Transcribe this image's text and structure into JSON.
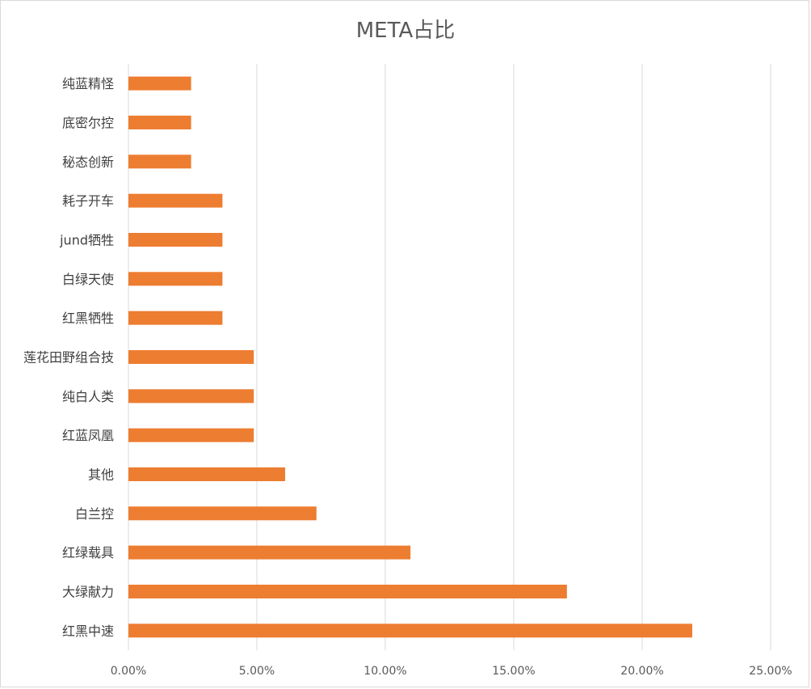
{
  "chart_data": {
    "type": "bar",
    "orientation": "horizontal",
    "title": "META占比",
    "categories": [
      "红黑中速",
      "大绿献力",
      "红绿载具",
      "白兰控",
      "其他",
      "红蓝凤凰",
      "纯白人类",
      "莲花田野组合技",
      "红黑牺牲",
      "白绿天使",
      "jund牺牲",
      "耗子开车",
      "秘态创新",
      "底密尔控",
      "纯蓝精怪"
    ],
    "values": [
      21.95,
      17.07,
      10.98,
      7.32,
      6.1,
      4.88,
      4.88,
      4.88,
      3.66,
      3.66,
      3.66,
      3.66,
      2.44,
      2.44,
      2.44
    ],
    "xlim": [
      0,
      25
    ],
    "xticks": [
      "0.00%",
      "5.00%",
      "10.00%",
      "15.00%",
      "20.00%",
      "25.00%"
    ],
    "xlabel": "",
    "ylabel": "",
    "grid": true,
    "legend": "none",
    "bar_color": "#ED7D31",
    "grid_color": "#d9d9d9"
  }
}
